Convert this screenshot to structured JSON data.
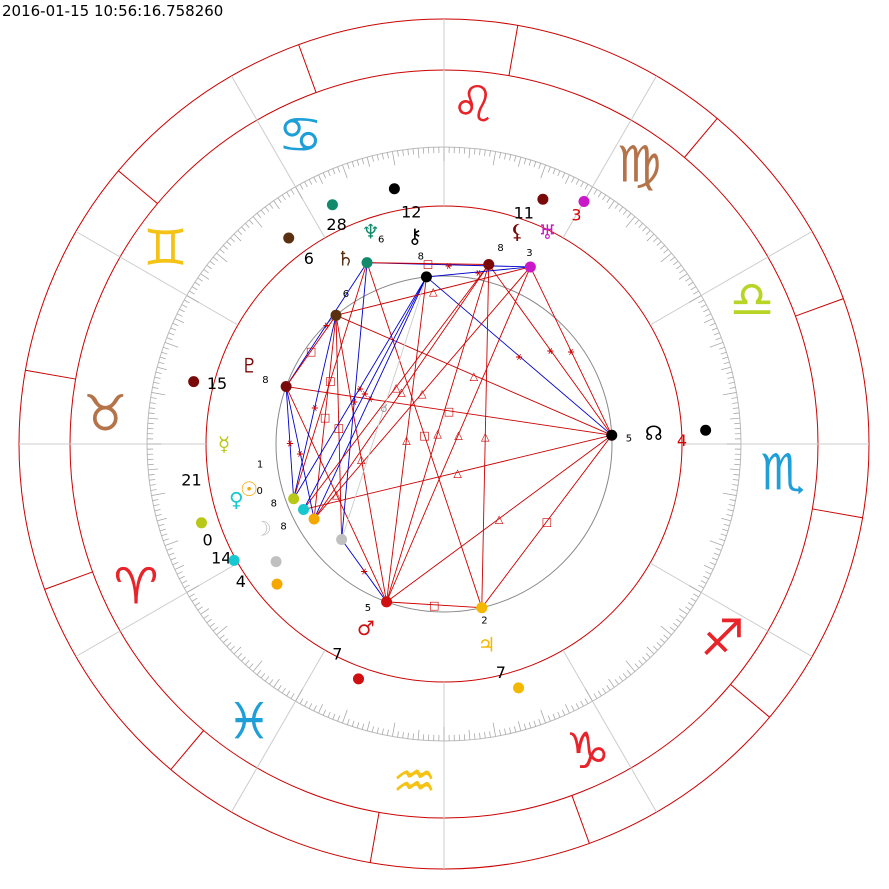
{
  "header": {
    "timestamp": "2016-01-15 10:56:16.758260"
  },
  "zodiac_signs": [
    {
      "name": "aries",
      "glyph": "♈",
      "color": "#e8242a"
    },
    {
      "name": "taurus",
      "glyph": "♉",
      "color": "#b5734a"
    },
    {
      "name": "gemini",
      "glyph": "♊",
      "color": "#f5c216"
    },
    {
      "name": "cancer",
      "glyph": "♋",
      "color": "#1e9fd8"
    },
    {
      "name": "leo",
      "glyph": "♌",
      "color": "#e8242a"
    },
    {
      "name": "virgo",
      "glyph": "♍",
      "color": "#b5734a"
    },
    {
      "name": "libra",
      "glyph": "♎",
      "color": "#b8d424"
    },
    {
      "name": "scorpio",
      "glyph": "♏",
      "color": "#1e9fd8"
    },
    {
      "name": "sagittarius",
      "glyph": "♐",
      "color": "#e8242a"
    },
    {
      "name": "capricorn",
      "glyph": "♑",
      "color": "#e8242a"
    },
    {
      "name": "aquarius",
      "glyph": "♒",
      "color": "#f5c216"
    },
    {
      "name": "pisces",
      "glyph": "♓",
      "color": "#1e9fd8"
    }
  ],
  "planets": [
    {
      "name": "sun",
      "glyph": "☉",
      "color": "#f5a800",
      "degree": "4",
      "house": "8"
    },
    {
      "name": "moon",
      "glyph": "☽",
      "color": "#c0c0c0",
      "degree": "14",
      "house": "8"
    },
    {
      "name": "mercury",
      "glyph": "☿",
      "color": "#b8c818",
      "degree": "21",
      "house": "1"
    },
    {
      "name": "venus",
      "glyph": "♀",
      "color": "#18c8d0",
      "degree": "0",
      "house": "0"
    },
    {
      "name": "mars",
      "glyph": "♂",
      "color": "#d01010",
      "degree": "7",
      "house": "5"
    },
    {
      "name": "jupiter",
      "glyph": "♃",
      "color": "#f5b800",
      "degree": "7",
      "house": "2"
    },
    {
      "name": "saturn",
      "glyph": "♄",
      "color": "#5a3010",
      "degree": "6",
      "house": "6"
    },
    {
      "name": "uranus",
      "glyph": "♅",
      "color": "#c818c8",
      "degree": "3",
      "house": "3"
    },
    {
      "name": "neptune",
      "glyph": "♆",
      "color": "#108a6a",
      "degree": "28",
      "house": "6"
    },
    {
      "name": "pluto",
      "glyph": "♇",
      "color": "#7a0a0a",
      "degree": "15",
      "house": "8"
    },
    {
      "name": "chiron",
      "glyph": "⚷",
      "color": "#000000",
      "degree": "12",
      "house": "8"
    },
    {
      "name": "lilith",
      "glyph": "⚸",
      "color": "#7a0a0a",
      "degree": "11",
      "house": "8"
    },
    {
      "name": "north-node",
      "glyph": "☊",
      "color": "#000000",
      "degree": "4",
      "house": "5"
    }
  ],
  "aspect_symbols": {
    "square": "□",
    "trine": "△",
    "sextile": "⚹",
    "opposition": "☍",
    "conjunction": "☌"
  }
}
